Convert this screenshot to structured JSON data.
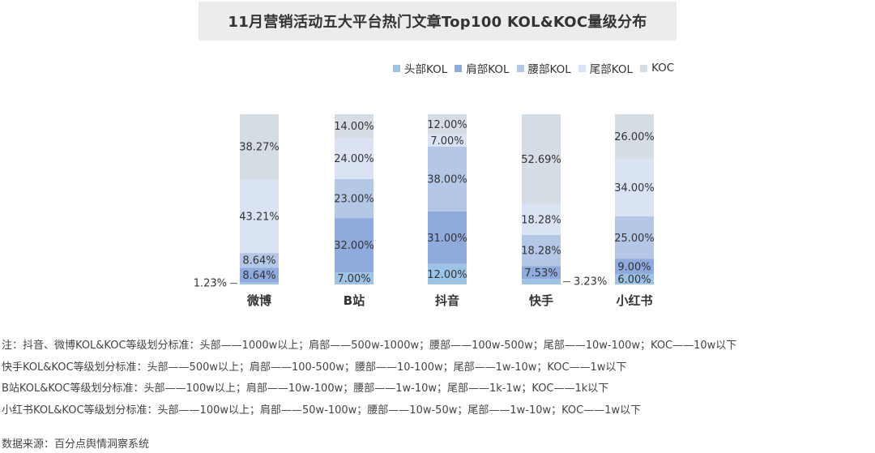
{
  "chart_data": {
    "type": "bar",
    "stacked": true,
    "normalized": true,
    "title": "11月营销活动五大平台热门文章Top100  KOL&KOC量级分布",
    "categories": [
      "微博",
      "B站",
      "抖音",
      "快手",
      "小红书"
    ],
    "ylim": [
      0,
      100
    ],
    "legend_position": "top-right",
    "grid": false,
    "series": [
      {
        "name": "头部KOL",
        "color": "#9dc3e6",
        "values": [
          1.23,
          7.0,
          12.0,
          3.23,
          6.0
        ],
        "labels": [
          "1.23%",
          "7.00%",
          "12.00%",
          "3.23%",
          "6.00%"
        ]
      },
      {
        "name": "肩部KOL",
        "color": "#8faadc",
        "values": [
          8.64,
          32.0,
          31.0,
          7.53,
          9.0
        ],
        "labels": [
          "8.64%",
          "32.00%",
          "31.00%",
          "7.53%",
          "9.00%"
        ]
      },
      {
        "name": "腰部KOL",
        "color": "#b4c7e7",
        "values": [
          8.64,
          23.0,
          38.0,
          18.28,
          25.0
        ],
        "labels": [
          "8.64%",
          "23.00%",
          "38.00%",
          "18.28%",
          "25.00%"
        ]
      },
      {
        "name": "尾部KOL",
        "color": "#dae3f3",
        "values": [
          43.21,
          24.0,
          7.0,
          18.28,
          34.0
        ],
        "labels": [
          "43.21%",
          "24.00%",
          "7.00%",
          "18.28%",
          "34.00%"
        ]
      },
      {
        "name": "KOC",
        "color": "#d6dce4",
        "values": [
          38.27,
          14.0,
          12.0,
          52.69,
          26.0
        ],
        "labels": [
          "38.27%",
          "14.00%",
          "12.00%",
          "52.69%",
          "26.00%"
        ]
      }
    ]
  },
  "notes": [
    "注：抖音、微博KOL&KOC等级划分标准：头部——1000w以上；肩部——500w-1000w；腰部——100w-500w；尾部——10w-100w；KOC——10w以下",
    "快手KOL&KOC等级划分标准：头部——500w以上；肩部——100-500w；腰部——10-100w；尾部——1w-10w；KOC——1w以下",
    "B站KOL&KOC等级划分标准：头部——100w以上；肩部——10w-100w；腰部——1w-10w；尾部——1k-1w；KOC——1k以下",
    "小红书KOL&KOC等级划分标准：头部——100w以上；肩部——50w-100w；腰部——10w-50w；尾部——1w-10w；KOC——1w以下"
  ],
  "source": "数据来源：百分点舆情洞察系统"
}
